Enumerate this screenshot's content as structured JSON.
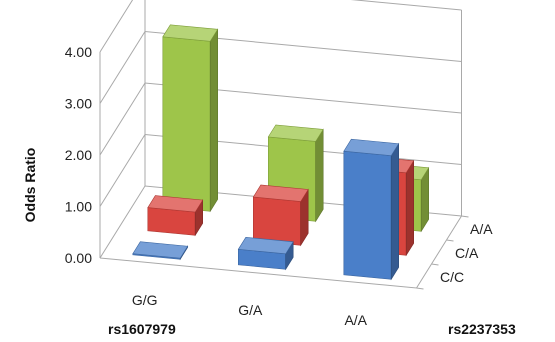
{
  "chart_data": {
    "type": "bar",
    "subtype": "3d-bar",
    "title": "",
    "ylabel": "Odds Ratio",
    "xlabel": "rs1607979",
    "zlabel": "rs2237353",
    "ylim": [
      0,
      4
    ],
    "yticks": [
      "0.00",
      "1.00",
      "2.00",
      "3.00",
      "4.00"
    ],
    "categories": [
      "G/G",
      "G/A",
      "A/A"
    ],
    "depth_categories": [
      "C/C",
      "C/A",
      "A/A"
    ],
    "grid": true,
    "series": [
      {
        "name": "C/C",
        "values": [
          0.02,
          0.3,
          2.4
        ],
        "color": "#4a7fc9"
      },
      {
        "name": "C/A",
        "values": [
          0.45,
          0.85,
          1.6
        ],
        "color": "#d9453f"
      },
      {
        "name": "A/A",
        "values": [
          3.3,
          1.55,
          1.0
        ],
        "color": "#9ec54a"
      }
    ]
  }
}
